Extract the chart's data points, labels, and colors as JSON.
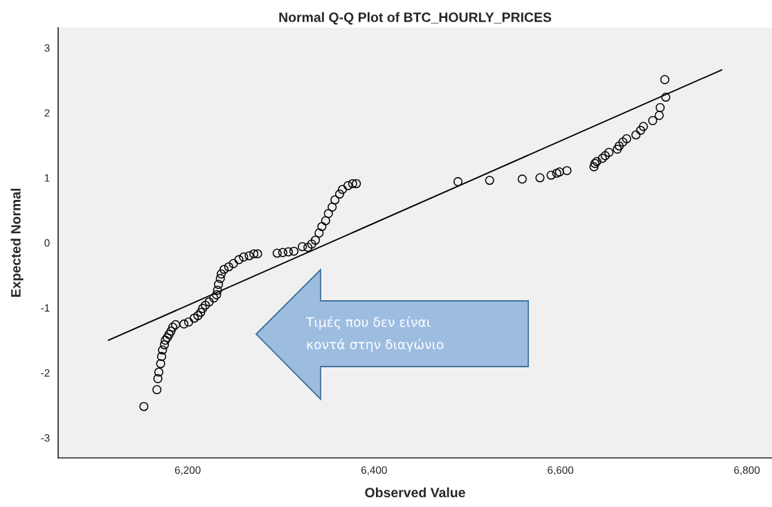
{
  "chart_data": {
    "type": "scatter",
    "title": "Normal Q-Q Plot of BTC_HOURLY_PRICES",
    "xlabel": "Observed Value",
    "ylabel": "Expected Normal",
    "xlim": [
      6061,
      6827
    ],
    "xticks": [
      {
        "value": 6200,
        "label": "6,200"
      },
      {
        "value": 6400,
        "label": "6,400"
      },
      {
        "value": 6600,
        "label": "6,600"
      },
      {
        "value": 6800,
        "label": "6,800"
      }
    ],
    "ylim": [
      -3.31,
      3.31
    ],
    "yticks": [
      -3,
      -2,
      -1,
      0,
      1,
      2,
      3
    ],
    "grid": false,
    "annotations": [
      "Τιμές που δεν είναι κοντά στην διαγώνιο"
    ],
    "series": [
      {
        "color": "#000000",
        "marker": "circle",
        "x": [
          6153,
          6167,
          6168,
          6169,
          6171,
          6172,
          6173,
          6175,
          6176,
          6178,
          6180,
          6182,
          6184,
          6187,
          6196,
          6201,
          6207,
          6211,
          6214,
          6216,
          6219,
          6223,
          6228,
          6231,
          6232,
          6233,
          6235,
          6236,
          6239,
          6244,
          6249,
          6255,
          6260,
          6266,
          6271,
          6275,
          6296,
          6302,
          6308,
          6314,
          6323,
          6329,
          6333,
          6337,
          6341,
          6344,
          6348,
          6351,
          6355,
          6358,
          6363,
          6366,
          6372,
          6377,
          6381,
          6490,
          6524,
          6559,
          6578,
          6590,
          6596,
          6599,
          6607,
          6636,
          6637,
          6639,
          6645,
          6648,
          6652,
          6661,
          6663,
          6667,
          6671,
          6681,
          6686,
          6689,
          6699,
          6706,
          6707,
          6713,
          6712
        ],
        "values": [
          -2.52,
          -2.26,
          -2.09,
          -1.99,
          -1.86,
          -1.75,
          -1.65,
          -1.57,
          -1.5,
          -1.46,
          -1.41,
          -1.36,
          -1.3,
          -1.26,
          -1.25,
          -1.22,
          -1.16,
          -1.12,
          -1.07,
          -1.01,
          -0.96,
          -0.91,
          -0.85,
          -0.8,
          -0.73,
          -0.64,
          -0.55,
          -0.48,
          -0.41,
          -0.37,
          -0.32,
          -0.26,
          -0.22,
          -0.2,
          -0.17,
          -0.17,
          -0.16,
          -0.15,
          -0.14,
          -0.13,
          -0.06,
          -0.07,
          -0.02,
          0.04,
          0.15,
          0.25,
          0.34,
          0.45,
          0.55,
          0.66,
          0.75,
          0.82,
          0.88,
          0.91,
          0.91,
          0.94,
          0.96,
          0.98,
          1.0,
          1.04,
          1.07,
          1.09,
          1.11,
          1.17,
          1.22,
          1.25,
          1.3,
          1.34,
          1.39,
          1.44,
          1.49,
          1.55,
          1.6,
          1.66,
          1.73,
          1.79,
          1.88,
          1.96,
          2.08,
          2.24,
          2.51
        ]
      },
      {
        "type": "line",
        "color": "#000000",
        "x": [
          6115,
          6773
        ],
        "values": [
          -1.5,
          2.66
        ]
      }
    ]
  }
}
